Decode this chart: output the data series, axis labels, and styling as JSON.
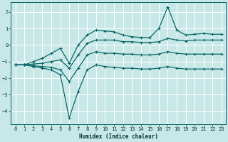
{
  "xlabel": "Humidex (Indice chaleur)",
  "bg_color": "#c8e8e8",
  "grid_color": "#ffffff",
  "line_color": "#006060",
  "xlim": [
    -0.5,
    23.5
  ],
  "ylim": [
    -4.8,
    2.6
  ],
  "xticks": [
    0,
    1,
    2,
    3,
    4,
    5,
    6,
    7,
    8,
    9,
    10,
    11,
    12,
    13,
    14,
    15,
    16,
    17,
    18,
    19,
    20,
    21,
    22,
    23
  ],
  "yticks": [
    -4,
    -3,
    -2,
    -1,
    0,
    1,
    2
  ],
  "series": [
    {
      "x": [
        0,
        1,
        2,
        3,
        4,
        5,
        6,
        7,
        8,
        9,
        10,
        11,
        12,
        13,
        14,
        15,
        16,
        17,
        18,
        19,
        20,
        21,
        22,
        23
      ],
      "y": [
        -1.2,
        -1.2,
        -1.3,
        -1.4,
        -1.5,
        -1.8,
        -4.4,
        -2.8,
        -1.5,
        -1.2,
        -1.3,
        -1.35,
        -1.4,
        -1.4,
        -1.45,
        -1.45,
        -1.4,
        -1.3,
        -1.4,
        -1.45,
        -1.45,
        -1.45,
        -1.45,
        -1.45
      ]
    },
    {
      "x": [
        0,
        1,
        2,
        3,
        4,
        5,
        6,
        7,
        8,
        9,
        10,
        11,
        12,
        13,
        14,
        15,
        16,
        17,
        18,
        19,
        20,
        21,
        22,
        23
      ],
      "y": [
        -1.2,
        -1.2,
        -1.25,
        -1.3,
        -1.35,
        -1.5,
        -2.2,
        -1.4,
        -0.6,
        -0.4,
        -0.5,
        -0.5,
        -0.55,
        -0.55,
        -0.6,
        -0.6,
        -0.55,
        -0.4,
        -0.5,
        -0.55,
        -0.55,
        -0.55,
        -0.55,
        -0.55
      ]
    },
    {
      "x": [
        0,
        1,
        2,
        3,
        4,
        5,
        6,
        7,
        8,
        9,
        10,
        11,
        12,
        13,
        14,
        15,
        16,
        17,
        18,
        19,
        20,
        21,
        22,
        23
      ],
      "y": [
        -1.2,
        -1.2,
        -1.15,
        -1.1,
        -1.0,
        -0.9,
        -1.4,
        -0.6,
        0.1,
        0.3,
        0.3,
        0.3,
        0.2,
        0.2,
        0.15,
        0.15,
        0.2,
        0.4,
        0.3,
        0.25,
        0.3,
        0.3,
        0.3,
        0.3
      ]
    },
    {
      "x": [
        0,
        1,
        2,
        3,
        4,
        5,
        6,
        7,
        8,
        9,
        10,
        11,
        12,
        13,
        14,
        15,
        16,
        17,
        18,
        19,
        20,
        21,
        22,
        23
      ],
      "y": [
        -1.2,
        -1.2,
        -1.0,
        -0.8,
        -0.5,
        -0.2,
        -1.1,
        0.0,
        0.6,
        0.9,
        0.85,
        0.8,
        0.6,
        0.5,
        0.45,
        0.45,
        1.0,
        2.3,
        0.9,
        0.6,
        0.65,
        0.7,
        0.65,
        0.65
      ]
    }
  ]
}
